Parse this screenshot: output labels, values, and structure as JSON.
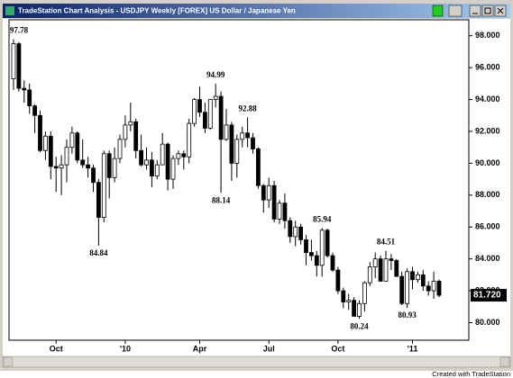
{
  "window_title": "TradeStation Chart Analysis - USDJPY Weekly [FOREX] US Dollar / Japanese Yen",
  "footer": "Created with TradeStation",
  "chart_data": {
    "type": "candlestick",
    "categories": [
      null,
      null,
      null,
      null,
      null,
      null,
      null,
      null,
      "Oct",
      null,
      null,
      null,
      null,
      null,
      null,
      null,
      null,
      null,
      null,
      null,
      null,
      "'10",
      null,
      null,
      null,
      null,
      null,
      null,
      null,
      null,
      null,
      null,
      null,
      null,
      null,
      "Apr",
      null,
      null,
      null,
      null,
      null,
      null,
      null,
      null,
      null,
      null,
      null,
      null,
      "Jul",
      null,
      null,
      null,
      null,
      null,
      null,
      null,
      null,
      null,
      null,
      null,
      null,
      "Oct",
      null,
      null,
      null,
      null,
      null,
      null,
      null,
      null,
      null,
      null,
      null,
      null,
      null,
      "'11",
      null,
      null,
      null,
      null,
      null
    ],
    "series": [
      {
        "up_color": "#ffffff",
        "down_color": "#000000",
        "open": [
          95.3,
          97.5,
          94.7,
          94.6,
          93.6,
          93.0,
          90.8,
          91.7,
          89.8,
          89.7,
          89.9,
          91.0,
          91.9,
          90.2,
          89.9,
          89.7,
          88.8,
          86.6,
          90.6,
          89.1,
          90.3,
          91.5,
          92.4,
          92.6,
          90.8,
          89.9,
          90.2,
          89.2,
          89.9,
          91.2,
          89.0,
          90.3,
          90.6,
          90.4,
          92.5,
          94.0,
          93.2,
          92.2,
          94.0,
          94.2,
          91.5,
          92.4,
          90.0,
          91.5,
          91.9,
          91.6,
          90.9,
          88.6,
          87.7,
          88.6,
          86.5,
          87.5,
          86.4,
          85.4,
          86.0,
          85.2,
          84.4,
          84.2,
          83.6,
          85.8,
          84.2,
          83.3,
          82.0,
          81.3,
          81.4,
          80.4,
          81.2,
          82.5,
          83.5,
          84.0,
          82.6,
          84.0,
          83.9,
          82.9,
          81.2,
          83.2,
          82.7,
          83.0,
          82.3,
          82.0,
          82.6
        ],
        "high": [
          97.78,
          97.6,
          95.2,
          95.0,
          93.7,
          93.3,
          92.0,
          92.0,
          90.4,
          90.5,
          91.5,
          92.3,
          92.0,
          91.5,
          90.4,
          89.9,
          89.0,
          90.8,
          90.8,
          91.0,
          91.8,
          93.0,
          93.8,
          92.8,
          91.8,
          91.0,
          90.7,
          90.2,
          91.9,
          91.3,
          90.5,
          90.8,
          90.8,
          92.8,
          94.1,
          94.8,
          93.8,
          94.0,
          94.99,
          94.5,
          93.4,
          92.6,
          91.8,
          92.3,
          92.88,
          91.9,
          91.0,
          88.7,
          89.1,
          88.9,
          87.7,
          88.1,
          86.6,
          86.4,
          86.2,
          85.5,
          85.2,
          84.5,
          85.94,
          85.9,
          84.4,
          83.5,
          82.2,
          81.8,
          81.6,
          81.4,
          82.6,
          83.8,
          84.4,
          84.2,
          84.51,
          84.3,
          84.0,
          83.2,
          83.4,
          83.5,
          83.2,
          83.3,
          82.6,
          83.2,
          82.7
        ],
        "low": [
          94.6,
          94.5,
          93.8,
          93.1,
          91.9,
          90.7,
          90.2,
          89.0,
          88.2,
          88.0,
          88.8,
          90.6,
          90.0,
          89.7,
          89.1,
          88.2,
          84.84,
          86.3,
          87.8,
          88.8,
          90.0,
          91.0,
          92.0,
          90.3,
          89.8,
          89.6,
          88.5,
          89.0,
          89.9,
          88.3,
          88.4,
          89.9,
          89.6,
          90.0,
          92.3,
          92.9,
          91.9,
          92.1,
          93.5,
          88.14,
          91.4,
          88.9,
          89.1,
          91.0,
          91.0,
          90.6,
          88.4,
          86.9,
          87.2,
          86.3,
          86.2,
          85.9,
          85.0,
          84.8,
          84.9,
          83.6,
          83.9,
          82.9,
          82.9,
          84.1,
          83.2,
          81.8,
          80.9,
          80.8,
          80.4,
          80.24,
          80.7,
          82.3,
          82.8,
          82.6,
          82.6,
          83.3,
          82.9,
          81.1,
          80.93,
          82.1,
          82.5,
          82.0,
          81.7,
          81.5,
          81.6
        ],
        "close": [
          97.5,
          94.7,
          94.6,
          93.6,
          93.0,
          90.8,
          91.7,
          89.8,
          89.7,
          89.9,
          91.0,
          91.9,
          90.2,
          89.9,
          89.7,
          88.8,
          86.6,
          90.6,
          89.1,
          90.3,
          91.5,
          92.4,
          92.6,
          90.8,
          89.9,
          90.2,
          89.2,
          89.9,
          91.2,
          89.0,
          90.3,
          90.6,
          90.4,
          92.5,
          94.0,
          93.2,
          92.2,
          94.0,
          94.2,
          91.5,
          92.4,
          90.0,
          91.5,
          91.9,
          91.6,
          90.9,
          88.6,
          87.7,
          88.6,
          86.5,
          87.5,
          86.4,
          85.4,
          86.0,
          85.2,
          84.4,
          84.2,
          83.6,
          85.8,
          84.2,
          83.3,
          82.0,
          81.3,
          81.4,
          80.4,
          81.2,
          82.5,
          83.5,
          84.0,
          82.6,
          84.0,
          83.9,
          82.9,
          81.2,
          83.2,
          82.7,
          83.0,
          82.3,
          82.0,
          82.6,
          81.72
        ]
      }
    ],
    "ylim": [
      78.9,
      99.0
    ],
    "yticks": [
      {
        "value": 80,
        "label": "80.000"
      },
      {
        "value": 82,
        "label": "82.000"
      },
      {
        "value": 84,
        "label": "84.000"
      },
      {
        "value": 86,
        "label": "86.000"
      },
      {
        "value": 88,
        "label": "88.000"
      },
      {
        "value": 90,
        "label": "90.000"
      },
      {
        "value": 92,
        "label": "92.000"
      },
      {
        "value": 94,
        "label": "94.000"
      },
      {
        "value": 96,
        "label": "96.000"
      },
      {
        "value": 98,
        "label": "98.000"
      }
    ],
    "last_price": {
      "value": 81.72,
      "label": "81.720"
    },
    "annotations": [
      "97.78",
      "94.99",
      "92.88",
      "88.14",
      "84.84",
      "85.94",
      "84.51",
      "80.24",
      "80.93"
    ]
  }
}
